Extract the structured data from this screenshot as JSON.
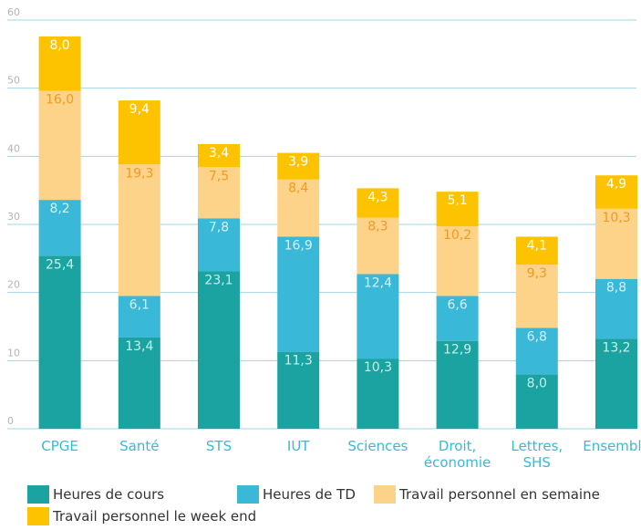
{
  "chart_data": {
    "type": "stacked_bar",
    "categories": [
      "CPGE",
      "Santé",
      "STS",
      "IUT",
      "Sciences",
      "Droit, économie",
      "Lettres, SHS",
      "Ensemble"
    ],
    "series": [
      {
        "name": "Heures de cours",
        "color": "#1aa3a0",
        "label_color": "#c8efec",
        "values": [
          25.4,
          13.4,
          23.1,
          11.3,
          10.3,
          12.9,
          8.0,
          13.2
        ],
        "value_labels": [
          "25,4",
          "13,4",
          "23,1",
          "11,3",
          "10,3",
          "12,9",
          "8,0",
          "13,2"
        ]
      },
      {
        "name": "Heures de TD",
        "color": "#3ab8d8",
        "label_color": "#d6f1f8",
        "values": [
          8.2,
          6.1,
          7.8,
          16.9,
          12.4,
          6.6,
          6.8,
          8.8
        ],
        "value_labels": [
          "8,2",
          "6,1",
          "7,8",
          "16,9",
          "12,4",
          "6,6",
          "6,8",
          "8,8"
        ]
      },
      {
        "name": "Travail personnel en semaine",
        "color": "#fdd38a",
        "label_color": "#f39a1e",
        "values": [
          16.0,
          19.3,
          7.5,
          8.4,
          8.3,
          10.2,
          9.3,
          10.3
        ],
        "value_labels": [
          "16,0",
          "19,3",
          "7,5",
          "8,4",
          "8,3",
          "10,2",
          "9,3",
          "10,3"
        ]
      },
      {
        "name": "Travail personnel le week end",
        "color": "#fdc300",
        "label_color": "#ffffff",
        "values": [
          8.0,
          9.4,
          3.4,
          3.9,
          4.3,
          5.1,
          4.1,
          4.9
        ],
        "value_labels": [
          "8,0",
          "9,4",
          "3,4",
          "3,9",
          "4,3",
          "5,1",
          "4,1",
          "4,9"
        ]
      }
    ],
    "ylim": [
      0,
      60
    ],
    "yticks": [
      0,
      10,
      20,
      30,
      40,
      50,
      60
    ],
    "grid": true
  }
}
